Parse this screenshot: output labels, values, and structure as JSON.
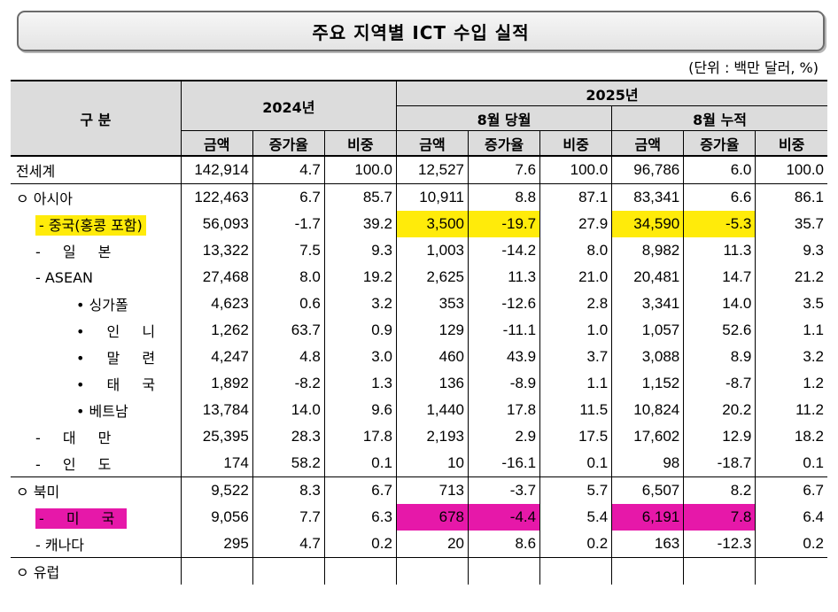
{
  "title": "주요 지역별 ICT 수입 실적",
  "unit_note": "(단위 : 백만 달러, %)",
  "header": {
    "category": "구 분",
    "y2024": "2024년",
    "y2025": "2025년",
    "aug_month": "8월 당월",
    "aug_cum": "8월 누적",
    "amount": "금액",
    "growth": "증가율",
    "share": "비중"
  },
  "rows": [
    {
      "label": "전세계",
      "v": [
        "142,914",
        "4.7",
        "100.0",
        "12,527",
        "7.6",
        "100.0",
        "96,786",
        "6.0",
        "100.0"
      ]
    },
    {
      "label": "ㅇ 아시아",
      "v": [
        "122,463",
        "6.7",
        "85.7",
        "10,911",
        "8.8",
        "87.1",
        "83,341",
        "6.6",
        "86.1"
      ]
    },
    {
      "label": "- 중국(홍콩 포함)",
      "v": [
        "56,093",
        "-1.7",
        "39.2",
        "3,500",
        "-19.7",
        "27.9",
        "34,590",
        "-5.3",
        "35.7"
      ]
    },
    {
      "label": "- 일 본",
      "v": [
        "13,322",
        "7.5",
        "9.3",
        "1,003",
        "-14.2",
        "8.0",
        "8,982",
        "11.3",
        "9.3"
      ]
    },
    {
      "label": "- ASEAN",
      "v": [
        "27,468",
        "8.0",
        "19.2",
        "2,625",
        "11.3",
        "21.0",
        "20,481",
        "14.7",
        "21.2"
      ]
    },
    {
      "label": "• 싱가폴",
      "v": [
        "4,623",
        "0.6",
        "3.2",
        "353",
        "-12.6",
        "2.8",
        "3,341",
        "14.0",
        "3.5"
      ]
    },
    {
      "label": "• 인 니",
      "v": [
        "1,262",
        "63.7",
        "0.9",
        "129",
        "-11.1",
        "1.0",
        "1,057",
        "52.6",
        "1.1"
      ]
    },
    {
      "label": "• 말 련",
      "v": [
        "4,247",
        "4.8",
        "3.0",
        "460",
        "43.9",
        "3.7",
        "3,088",
        "8.9",
        "3.2"
      ]
    },
    {
      "label": "• 태 국",
      "v": [
        "1,892",
        "-8.2",
        "1.3",
        "136",
        "-8.9",
        "1.1",
        "1,152",
        "-8.7",
        "1.2"
      ]
    },
    {
      "label": "• 베트남",
      "v": [
        "13,784",
        "14.0",
        "9.6",
        "1,440",
        "17.8",
        "11.5",
        "10,824",
        "20.2",
        "11.2"
      ]
    },
    {
      "label": "- 대 만",
      "v": [
        "25,395",
        "28.3",
        "17.8",
        "2,193",
        "2.9",
        "17.5",
        "17,602",
        "12.9",
        "18.2"
      ]
    },
    {
      "label": "- 인 도",
      "v": [
        "174",
        "58.2",
        "0.1",
        "10",
        "-16.1",
        "0.1",
        "98",
        "-18.7",
        "0.1"
      ]
    },
    {
      "label": "ㅇ 북미",
      "v": [
        "9,522",
        "8.3",
        "6.7",
        "713",
        "-3.7",
        "5.7",
        "6,507",
        "8.2",
        "6.7"
      ]
    },
    {
      "label": "- 미 국",
      "v": [
        "9,056",
        "7.7",
        "6.3",
        "678",
        "-4.4",
        "5.4",
        "6,191",
        "7.8",
        "6.4"
      ]
    },
    {
      "label": "- 캐나다",
      "v": [
        "295",
        "4.7",
        "0.2",
        "20",
        "8.6",
        "0.2",
        "163",
        "-12.3",
        "0.2"
      ]
    },
    {
      "label": "ㅇ 유럽",
      "v": [
        "",
        "",
        "",
        "",
        "",
        "",
        "",
        "",
        ""
      ]
    }
  ],
  "highlight_colors": {
    "yellow": "#ffeb0a",
    "magenta": "#e618a9"
  }
}
